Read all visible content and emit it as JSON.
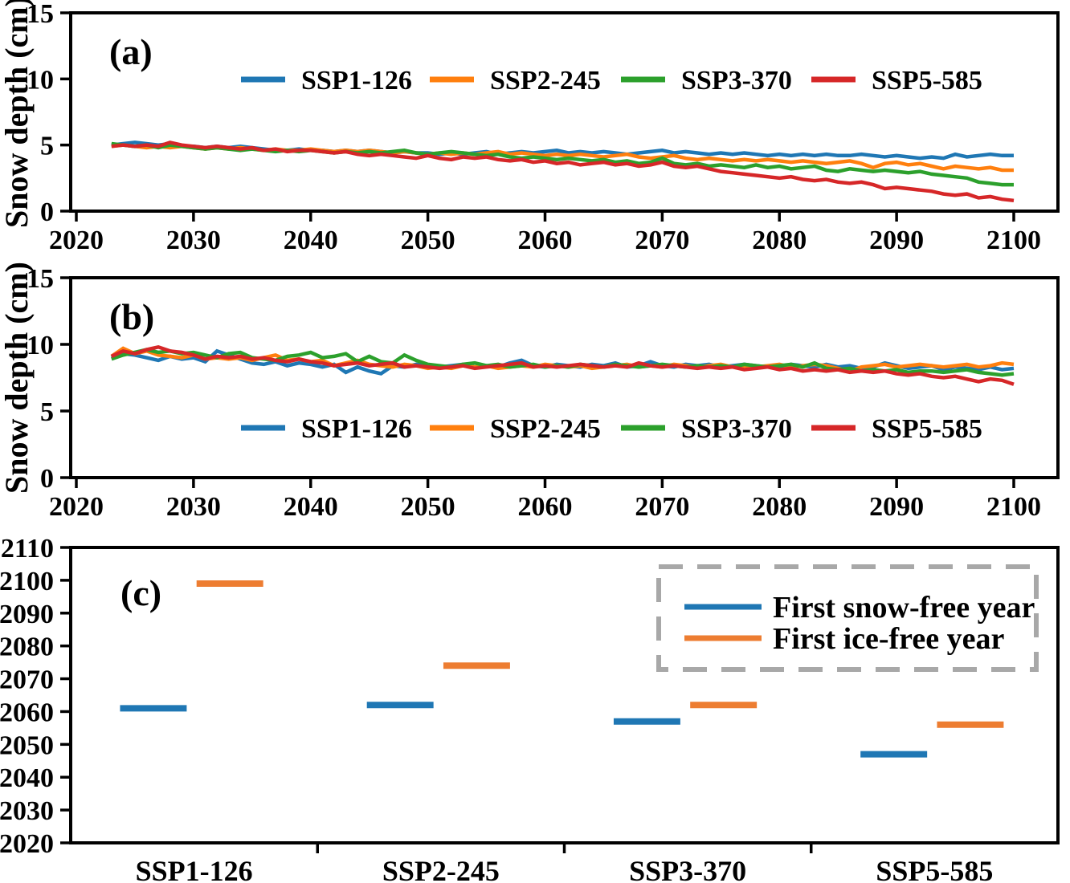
{
  "figure": {
    "background": "#ffffff",
    "frame_color": "#000000",
    "legend_box_color": "#a8a8a8",
    "scenario_colors": {
      "SSP1-126": "#1f77b4",
      "SSP2-245": "#ff7f0e",
      "SSP3-370": "#2ca02c",
      "SSP5-585": "#d62728"
    },
    "marker_colors": {
      "snow_free": "#1f77b4",
      "ice_free": "#ed7d31"
    }
  },
  "chart_data": [
    {
      "type": "line",
      "panel_label": "(a)",
      "ylabel": "Snow depth (cm)",
      "ylim": [
        0,
        15
      ],
      "yticks": [
        0,
        5,
        10,
        15
      ],
      "xlim": [
        2020,
        2100
      ],
      "xticks": [
        2020,
        2030,
        2040,
        2050,
        2060,
        2070,
        2080,
        2090,
        2100
      ],
      "x_start": 2023,
      "x_step": 1,
      "grid": false,
      "legend_position": "inside top center",
      "series": [
        {
          "name": "SSP1-126",
          "color": "#1f77b4",
          "values": [
            5.0,
            5.1,
            5.2,
            5.1,
            5.0,
            5.1,
            4.9,
            4.9,
            4.8,
            4.9,
            4.8,
            4.9,
            4.8,
            4.7,
            4.6,
            4.6,
            4.7,
            4.6,
            4.6,
            4.5,
            4.6,
            4.5,
            4.6,
            4.5,
            4.4,
            4.5,
            4.4,
            4.4,
            4.3,
            4.4,
            4.3,
            4.4,
            4.5,
            4.3,
            4.4,
            4.5,
            4.4,
            4.5,
            4.6,
            4.4,
            4.5,
            4.4,
            4.5,
            4.4,
            4.3,
            4.4,
            4.5,
            4.6,
            4.4,
            4.5,
            4.4,
            4.3,
            4.4,
            4.3,
            4.4,
            4.3,
            4.2,
            4.3,
            4.2,
            4.3,
            4.2,
            4.3,
            4.2,
            4.2,
            4.3,
            4.2,
            4.1,
            4.2,
            4.1,
            4.0,
            4.1,
            4.0,
            4.3,
            4.1,
            4.2,
            4.3,
            4.2,
            4.2
          ]
        },
        {
          "name": "SSP2-245",
          "color": "#ff7f0e",
          "values": [
            4.9,
            5.0,
            4.9,
            4.8,
            4.9,
            4.8,
            4.9,
            4.8,
            4.7,
            4.8,
            4.7,
            4.8,
            4.7,
            4.6,
            4.7,
            4.6,
            4.6,
            4.7,
            4.6,
            4.5,
            4.6,
            4.5,
            4.6,
            4.5,
            4.4,
            4.5,
            4.4,
            4.3,
            4.4,
            4.3,
            4.4,
            4.3,
            4.4,
            4.5,
            4.3,
            4.4,
            4.3,
            4.2,
            4.3,
            4.2,
            4.3,
            4.2,
            4.1,
            4.2,
            4.3,
            4.1,
            4.0,
            4.1,
            4.2,
            4.0,
            3.9,
            4.0,
            3.9,
            3.8,
            3.9,
            3.8,
            3.9,
            3.8,
            3.7,
            3.8,
            3.7,
            3.6,
            3.7,
            3.8,
            3.6,
            3.3,
            3.6,
            3.7,
            3.5,
            3.6,
            3.4,
            3.2,
            3.4,
            3.3,
            3.2,
            3.3,
            3.1,
            3.1
          ]
        },
        {
          "name": "SSP3-370",
          "color": "#2ca02c",
          "values": [
            5.1,
            5.0,
            4.9,
            5.0,
            4.8,
            5.0,
            4.9,
            4.8,
            4.7,
            4.8,
            4.7,
            4.6,
            4.7,
            4.6,
            4.5,
            4.6,
            4.5,
            4.6,
            4.5,
            4.4,
            4.5,
            4.4,
            4.5,
            4.4,
            4.5,
            4.6,
            4.4,
            4.3,
            4.4,
            4.5,
            4.4,
            4.3,
            4.2,
            4.3,
            4.1,
            4.0,
            4.1,
            4.0,
            3.9,
            4.0,
            3.9,
            3.8,
            3.9,
            3.7,
            3.8,
            3.6,
            3.7,
            4.0,
            3.6,
            3.5,
            3.6,
            3.4,
            3.5,
            3.4,
            3.3,
            3.5,
            3.3,
            3.4,
            3.2,
            3.3,
            3.4,
            3.1,
            3.0,
            3.2,
            3.1,
            3.0,
            3.1,
            3.0,
            2.9,
            3.0,
            2.8,
            2.7,
            2.6,
            2.5,
            2.2,
            2.1,
            2.0,
            2.0
          ]
        },
        {
          "name": "SSP5-585",
          "color": "#d62728",
          "values": [
            4.9,
            5.0,
            4.9,
            5.0,
            4.9,
            5.2,
            5.0,
            4.9,
            4.8,
            4.9,
            4.8,
            4.7,
            4.8,
            4.6,
            4.7,
            4.5,
            4.6,
            4.6,
            4.5,
            4.4,
            4.5,
            4.3,
            4.2,
            4.3,
            4.2,
            4.1,
            4.0,
            4.2,
            4.0,
            3.9,
            4.1,
            4.0,
            4.1,
            3.9,
            3.8,
            3.9,
            3.7,
            3.8,
            3.6,
            3.7,
            3.5,
            3.6,
            3.7,
            3.5,
            3.6,
            3.4,
            3.5,
            3.7,
            3.4,
            3.3,
            3.4,
            3.2,
            3.0,
            2.9,
            2.8,
            2.7,
            2.6,
            2.5,
            2.6,
            2.4,
            2.3,
            2.4,
            2.2,
            2.1,
            2.2,
            2.0,
            1.7,
            1.8,
            1.7,
            1.6,
            1.5,
            1.3,
            1.2,
            1.3,
            1.0,
            1.1,
            0.9,
            0.8
          ]
        }
      ]
    },
    {
      "type": "line",
      "panel_label": "(b)",
      "ylabel": "Snow depth (cm)",
      "ylim": [
        0,
        15
      ],
      "yticks": [
        0,
        5,
        10,
        15
      ],
      "xlim": [
        2020,
        2100
      ],
      "xticks": [
        2020,
        2030,
        2040,
        2050,
        2060,
        2070,
        2080,
        2090,
        2100
      ],
      "x_start": 2023,
      "x_step": 1,
      "grid": false,
      "legend_position": "inside lower center",
      "series": [
        {
          "name": "SSP1-126",
          "color": "#1f77b4",
          "values": [
            9.0,
            9.3,
            9.2,
            9.0,
            8.8,
            9.1,
            8.9,
            9.0,
            8.7,
            9.5,
            9.2,
            8.9,
            8.6,
            8.5,
            8.7,
            8.4,
            8.6,
            8.5,
            8.3,
            8.5,
            7.9,
            8.3,
            8.0,
            7.8,
            8.4,
            8.3,
            8.5,
            8.4,
            8.3,
            8.4,
            8.5,
            8.3,
            8.4,
            8.3,
            8.6,
            8.8,
            8.4,
            8.3,
            8.5,
            8.4,
            8.3,
            8.5,
            8.4,
            8.6,
            8.3,
            8.4,
            8.7,
            8.4,
            8.3,
            8.5,
            8.4,
            8.5,
            8.3,
            8.4,
            8.5,
            8.4,
            8.3,
            8.2,
            8.5,
            8.4,
            8.3,
            8.5,
            8.3,
            8.4,
            8.2,
            8.3,
            8.6,
            8.4,
            8.2,
            8.3,
            8.4,
            8.1,
            8.3,
            8.2,
            8.1,
            8.3,
            8.1,
            8.2
          ]
        },
        {
          "name": "SSP2-245",
          "color": "#ff7f0e",
          "values": [
            9.1,
            9.7,
            9.3,
            9.5,
            9.2,
            9.1,
            9.0,
            9.2,
            8.9,
            9.0,
            8.9,
            9.0,
            8.8,
            9.0,
            9.2,
            8.8,
            8.9,
            8.7,
            8.8,
            8.4,
            8.6,
            8.8,
            8.5,
            8.4,
            8.3,
            8.5,
            8.4,
            8.2,
            8.3,
            8.2,
            8.4,
            8.3,
            8.4,
            8.2,
            8.3,
            8.4,
            8.3,
            8.5,
            8.4,
            8.3,
            8.4,
            8.2,
            8.3,
            8.4,
            8.5,
            8.3,
            8.4,
            8.3,
            8.5,
            8.4,
            8.3,
            8.4,
            8.5,
            8.3,
            8.4,
            8.3,
            8.4,
            8.5,
            8.3,
            8.4,
            8.5,
            8.4,
            8.2,
            8.0,
            8.3,
            8.4,
            8.5,
            8.3,
            8.4,
            8.5,
            8.4,
            8.3,
            8.4,
            8.5,
            8.3,
            8.4,
            8.6,
            8.5
          ]
        },
        {
          "name": "SSP3-370",
          "color": "#2ca02c",
          "values": [
            8.9,
            9.2,
            9.4,
            9.6,
            9.4,
            9.5,
            9.3,
            9.4,
            9.2,
            9.0,
            9.3,
            9.4,
            9.0,
            8.9,
            8.8,
            9.1,
            9.2,
            9.4,
            9.0,
            9.1,
            9.3,
            8.7,
            9.1,
            8.7,
            8.6,
            9.2,
            8.8,
            8.5,
            8.4,
            8.3,
            8.5,
            8.6,
            8.4,
            8.5,
            8.3,
            8.4,
            8.5,
            8.3,
            8.4,
            8.3,
            8.5,
            8.4,
            8.3,
            8.5,
            8.4,
            8.3,
            8.4,
            8.5,
            8.4,
            8.3,
            8.4,
            8.3,
            8.4,
            8.3,
            8.5,
            8.4,
            8.3,
            8.4,
            8.5,
            8.3,
            8.6,
            8.2,
            8.1,
            8.2,
            8.0,
            8.1,
            8.0,
            8.1,
            7.9,
            8.0,
            8.0,
            7.9,
            8.0,
            8.1,
            7.9,
            7.8,
            7.7,
            7.8
          ]
        },
        {
          "name": "SSP5-585",
          "color": "#d62728",
          "values": [
            9.1,
            9.5,
            9.3,
            9.6,
            9.8,
            9.5,
            9.4,
            9.2,
            8.9,
            9.1,
            9.0,
            9.1,
            8.9,
            9.0,
            8.8,
            8.7,
            8.9,
            8.7,
            8.6,
            8.4,
            8.5,
            8.6,
            8.4,
            8.5,
            8.6,
            8.3,
            8.4,
            8.3,
            8.2,
            8.3,
            8.4,
            8.2,
            8.3,
            8.4,
            8.5,
            8.6,
            8.3,
            8.4,
            8.3,
            8.4,
            8.5,
            8.4,
            8.3,
            8.4,
            8.3,
            8.6,
            8.4,
            8.3,
            8.4,
            8.3,
            8.2,
            8.3,
            8.2,
            8.3,
            8.1,
            8.2,
            8.3,
            8.1,
            8.2,
            8.0,
            8.1,
            8.0,
            8.1,
            7.9,
            8.0,
            7.9,
            8.0,
            7.8,
            7.7,
            7.8,
            7.6,
            7.5,
            7.6,
            7.4,
            7.2,
            7.4,
            7.3,
            7.0
          ]
        }
      ]
    },
    {
      "type": "scatter",
      "marker": "horizontal-dash",
      "panel_label": "(c)",
      "categories": [
        "SSP1-126",
        "SSP2-245",
        "SSP3-370",
        "SSP5-585"
      ],
      "ylim": [
        2020,
        2110
      ],
      "yticks": [
        2020,
        2030,
        2040,
        2050,
        2060,
        2070,
        2080,
        2090,
        2100,
        2110
      ],
      "grid": false,
      "legend_position": "inside upper right, dashed box",
      "series": [
        {
          "name": "First snow-free year",
          "color": "#1f77b4",
          "values": [
            2061,
            2062,
            2057,
            2047
          ]
        },
        {
          "name": "First ice-free year",
          "color": "#ed7d31",
          "values": [
            2099,
            2074,
            2062,
            2056
          ]
        }
      ]
    }
  ]
}
